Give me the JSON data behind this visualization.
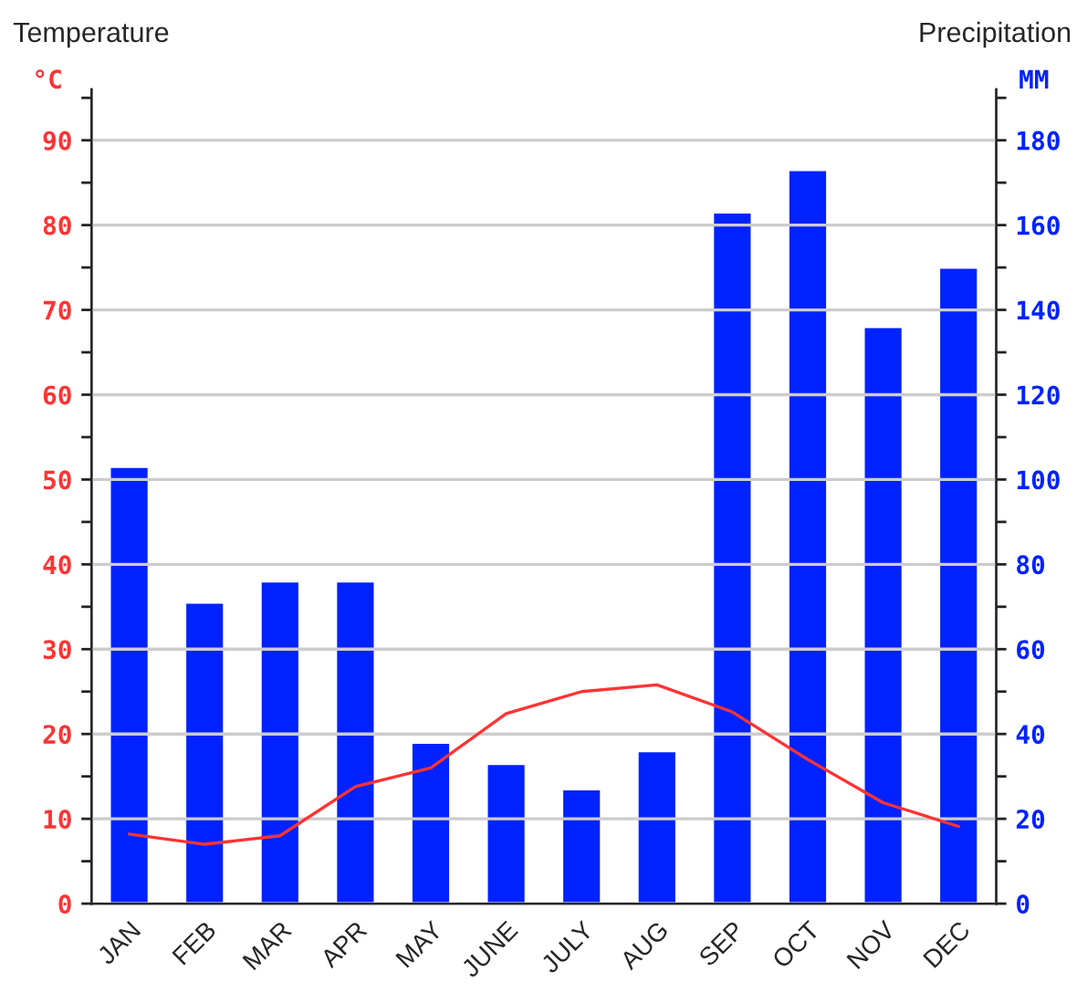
{
  "chart_data": {
    "type": "bar",
    "categories": [
      "JAN",
      "FEB",
      "MAR",
      "APR",
      "MAY",
      "JUNE",
      "JULY",
      "AUG",
      "SEP",
      "OCT",
      "NOV",
      "DEC"
    ],
    "series": [
      {
        "axis": "y2",
        "color": "#0022ff",
        "values": [
          103,
          71,
          76,
          76,
          38,
          33,
          27,
          36,
          163,
          173,
          136,
          150
        ]
      },
      {
        "type": "line",
        "axis": "y",
        "color": "#ff3333",
        "values": [
          8.2,
          7.0,
          8.0,
          13.8,
          16.0,
          22.4,
          25.0,
          25.8,
          22.6,
          17.0,
          11.9,
          9.1
        ]
      }
    ],
    "ylabel": "Temperature",
    "y2label": "Precipitation",
    "annotations": [
      "°C",
      "MM"
    ],
    "ylim": [
      0,
      96
    ],
    "yticks": [
      0,
      10,
      20,
      30,
      40,
      50,
      60,
      70,
      80,
      90
    ],
    "y2lim": [
      0,
      192
    ],
    "y2ticks": [
      0,
      20,
      40,
      60,
      80,
      100,
      120,
      140,
      160,
      180
    ],
    "grid": "y",
    "marker": "none",
    "line_style": "solid"
  }
}
